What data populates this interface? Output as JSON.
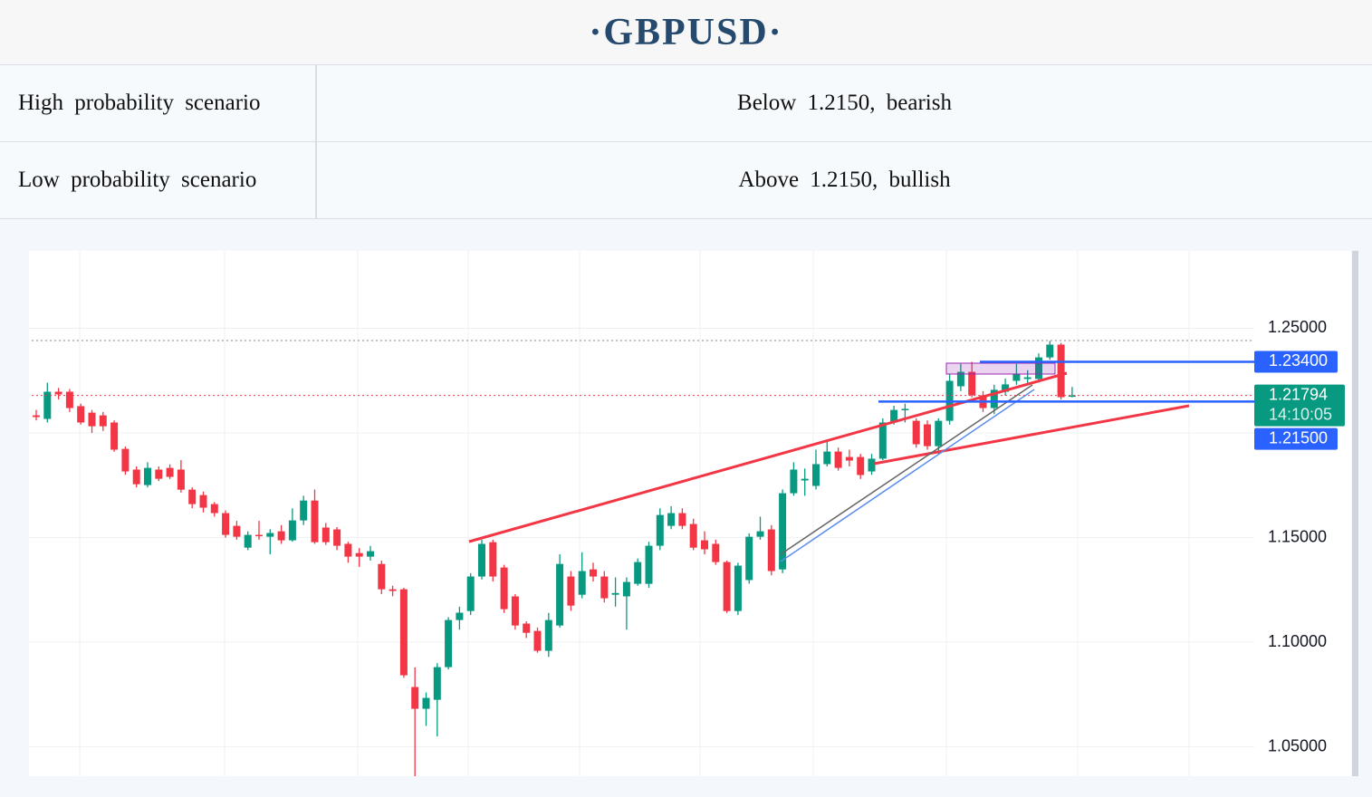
{
  "header": {
    "title": "·GBPUSD·"
  },
  "table": {
    "rows": [
      [
        "High probability scenario",
        "Below 1.2150, bearish"
      ],
      [
        "Low probability scenario",
        "Above 1.2150, bullish"
      ]
    ]
  },
  "chart_data": {
    "type": "candlestick",
    "up_color": "#089981",
    "down_color": "#f23645",
    "ylim": [
      1.036,
      1.287
    ],
    "yticks": [
      {
        "value": 1.25,
        "label": "1.25000"
      },
      {
        "value": 1.15,
        "label": "1.15000"
      },
      {
        "value": 1.1,
        "label": "1.10000"
      },
      {
        "value": 1.05,
        "label": "1.05000"
      }
    ],
    "grid": true,
    "price_labels": [
      {
        "value": 1.234,
        "label": "1.23400",
        "color": "#2962ff"
      },
      {
        "value": 1.21794,
        "label": "1.21794",
        "time": "14:10:05",
        "color": "#089981"
      },
      {
        "value": 1.215,
        "label": "1.21500",
        "color": "#2962ff"
      }
    ],
    "open": [
      1.2084,
      1.2067,
      1.2197,
      1.2197,
      1.2128,
      1.2097,
      1.2084,
      1.205,
      1.1924,
      1.1825,
      1.1751,
      1.1825,
      1.1833,
      1.1825,
      1.1729,
      1.1703,
      1.166,
      1.1617,
      1.1556,
      1.1452,
      1.1513,
      1.1504,
      1.153,
      1.1487,
      1.1582,
      1.1677,
      1.1548,
      1.1539,
      1.147,
      1.1426,
      1.1409,
      1.1374,
      1.1253,
      1.1253,
      1.0786,
      1.0682,
      1.0725,
      1.0881,
      1.1106,
      1.1149,
      1.1314,
      1.1478,
      1.1357,
      1.1219,
      1.1089,
      1.1054,
      1.0959,
      1.108,
      1.1314,
      1.1227,
      1.1348,
      1.1314,
      1.1227,
      1.1219,
      1.1279,
      1.1279,
      1.1461,
      1.1556,
      1.1617,
      1.1565,
      1.1487,
      1.147,
      1.1383,
      1.1149,
      1.1297,
      1.1504,
      1.1539,
      1.1348,
      1.1712,
      1.1773,
      1.1747,
      1.1851,
      1.1911,
      1.1885,
      1.1885,
      1.1816,
      1.1877,
      1.205,
      1.211,
      1.2058,
      1.2041,
      1.1937,
      1.2058,
      1.2223,
      1.2292,
      1.218,
      1.2119,
      1.2197,
      1.2249,
      1.2258,
      1.2258,
      1.2361,
      1.2422,
      1.2176
    ],
    "high": [
      1.211,
      1.224,
      1.2215,
      1.221,
      1.214,
      1.211,
      1.21,
      1.206,
      1.1935,
      1.184,
      1.186,
      1.184,
      1.185,
      1.187,
      1.174,
      1.172,
      1.167,
      1.163,
      1.158,
      1.153,
      1.158,
      1.154,
      1.156,
      1.164,
      1.17,
      1.173,
      1.157,
      1.155,
      1.148,
      1.145,
      1.146,
      1.139,
      1.127,
      1.126,
      1.088,
      1.076,
      1.09,
      1.112,
      1.117,
      1.133,
      1.149,
      1.149,
      1.137,
      1.123,
      1.11,
      1.107,
      1.114,
      1.142,
      1.134,
      1.143,
      1.138,
      1.134,
      1.131,
      1.131,
      1.14,
      1.148,
      1.164,
      1.165,
      1.164,
      1.159,
      1.153,
      1.149,
      1.139,
      1.138,
      1.152,
      1.16,
      1.156,
      1.173,
      1.186,
      1.183,
      1.192,
      1.196,
      1.193,
      1.192,
      1.19,
      1.19,
      1.207,
      1.213,
      1.214,
      1.207,
      1.206,
      1.207,
      1.228,
      1.233,
      1.234,
      1.22,
      1.223,
      1.226,
      1.233,
      1.23,
      1.238,
      1.244,
      1.243,
      1.222
    ],
    "low": [
      1.206,
      1.205,
      1.216,
      1.21,
      1.204,
      1.2,
      1.201,
      1.191,
      1.18,
      1.174,
      1.174,
      1.177,
      1.178,
      1.1715,
      1.164,
      1.162,
      1.16,
      1.15,
      1.149,
      1.144,
      1.149,
      1.142,
      1.147,
      1.148,
      1.156,
      1.147,
      1.1465,
      1.144,
      1.138,
      1.136,
      1.139,
      1.123,
      1.122,
      1.083,
      1.036,
      1.06,
      1.055,
      1.087,
      1.106,
      1.113,
      1.13,
      1.129,
      1.114,
      1.106,
      1.102,
      1.095,
      1.093,
      1.107,
      1.115,
      1.121,
      1.129,
      1.119,
      1.117,
      1.106,
      1.127,
      1.126,
      1.144,
      1.154,
      1.154,
      1.144,
      1.142,
      1.137,
      1.114,
      1.113,
      1.128,
      1.149,
      1.132,
      1.133,
      1.17,
      1.17,
      1.173,
      1.184,
      1.182,
      1.184,
      1.178,
      1.18,
      1.187,
      1.204,
      1.205,
      1.193,
      1.192,
      1.19,
      1.204,
      1.22,
      1.217,
      1.21,
      1.209,
      1.218,
      1.223,
      1.224,
      1.224,
      1.235,
      1.216,
      1.217
    ],
    "close": [
      1.2076,
      1.2197,
      1.2184,
      1.2119,
      1.205,
      1.2032,
      1.2032,
      1.192,
      1.1816,
      1.1755,
      1.1833,
      1.1781,
      1.179,
      1.1729,
      1.166,
      1.1643,
      1.1617,
      1.1513,
      1.1504,
      1.1513,
      1.151,
      1.1522,
      1.1487,
      1.1582,
      1.1677,
      1.1478,
      1.1478,
      1.1461,
      1.1409,
      1.1409,
      1.1435,
      1.1253,
      1.1245,
      1.0842,
      1.0682,
      1.0734,
      1.0881,
      1.1106,
      1.1141,
      1.1314,
      1.147,
      1.1314,
      1.1158,
      1.108,
      1.1045,
      1.0959,
      1.1106,
      1.1374,
      1.1175,
      1.134,
      1.1314,
      1.121,
      1.1235,
      1.1288,
      1.1383,
      1.1461,
      1.1608,
      1.1617,
      1.1556,
      1.1452,
      1.1444,
      1.1383,
      1.1149,
      1.1366,
      1.1504,
      1.153,
      1.134,
      1.1712,
      1.1825,
      1.1781,
      1.1851,
      1.1911,
      1.1833,
      1.1868,
      1.1799,
      1.1877,
      1.205,
      1.211,
      1.2115,
      1.1946,
      1.1937,
      1.2058,
      1.2249,
      1.2292,
      1.218,
      1.2119,
      1.2206,
      1.2232,
      1.2284,
      1.2266,
      1.2361,
      1.2422,
      1.2171,
      1.21794
    ]
  }
}
